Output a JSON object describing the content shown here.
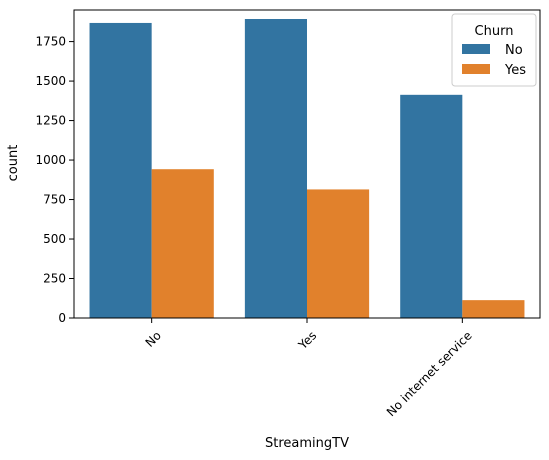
{
  "chart_data": {
    "type": "bar",
    "xlabel": "StreamingTV",
    "ylabel": "count",
    "categories": [
      "No",
      "Yes",
      "No internet service"
    ],
    "series": [
      {
        "name": "No",
        "values": [
          1868,
          1893,
          1413
        ],
        "color": "#3274a1"
      },
      {
        "name": "Yes",
        "values": [
          942,
          814,
          113
        ],
        "color": "#e1812c"
      }
    ],
    "ylim": [
      0,
      1950
    ],
    "yticks": [
      0,
      250,
      500,
      750,
      1000,
      1250,
      1500,
      1750
    ],
    "legend": {
      "title": "Churn",
      "placement": "top-right"
    },
    "grid": false
  }
}
